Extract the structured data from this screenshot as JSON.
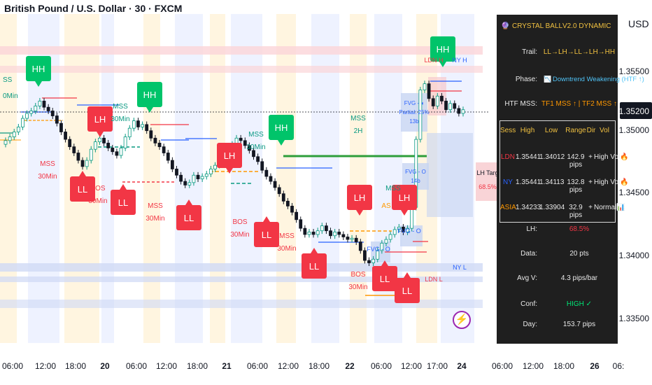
{
  "header": {
    "title": "British Pound / U.S. Dollar · 30 · FXCM",
    "currency": "USD"
  },
  "chart_data": {
    "type": "candlestick",
    "symbol": "British Pound / U.S. Dollar · 30 · FXCM",
    "y_ticks": [
      "1.35500",
      "1.35000",
      "1.34500",
      "1.34000",
      "1.33500"
    ],
    "current_price": "1.35200",
    "x_ticks": [
      "06:00",
      "12:00",
      "18:00",
      "20",
      "06:00",
      "12:00",
      "18:00",
      "21",
      "06:00",
      "12:00",
      "18:00",
      "22",
      "06:00",
      "12:00",
      "17:00",
      "24",
      "06:00",
      "12:00",
      "18:00",
      "26",
      "06:"
    ],
    "closes": [
      1.3494,
      1.3497,
      1.3501,
      1.3505,
      1.3512,
      1.3516,
      1.3518,
      1.3522,
      1.3526,
      1.3521,
      1.3518,
      1.3514,
      1.3508,
      1.3501,
      1.3495,
      1.3489,
      1.3484,
      1.3478,
      1.3473,
      1.3478,
      1.3487,
      1.3493,
      1.3496,
      1.3492,
      1.3488,
      1.3485,
      1.3482,
      1.3488,
      1.3497,
      1.3504,
      1.351,
      1.3505,
      1.3507,
      1.3502,
      1.3496,
      1.3492,
      1.3489,
      1.3484,
      1.3478,
      1.3471,
      1.3466,
      1.3461,
      1.3458,
      1.346,
      1.3466,
      1.3463,
      1.3465,
      1.3467,
      1.3471,
      1.3474,
      1.3478,
      1.3481,
      1.3484,
      1.3491,
      1.3496,
      1.3494,
      1.349,
      1.3486,
      1.3481,
      1.3477,
      1.347,
      1.3465,
      1.3461,
      1.3456,
      1.3451,
      1.3445,
      1.3441,
      1.3436,
      1.343,
      1.3423,
      1.3418,
      1.342,
      1.3418,
      1.3421,
      1.3425,
      1.3421,
      1.3417,
      1.342,
      1.3418,
      1.3416,
      1.3414,
      1.3415,
      1.3412,
      1.3405,
      1.3397,
      1.3395,
      1.3398,
      1.3405,
      1.3411,
      1.3414,
      1.3418,
      1.3422,
      1.3424,
      1.342,
      1.3423,
      1.344,
      1.3495,
      1.3535,
      1.354,
      1.3528,
      1.3522,
      1.353,
      1.3526,
      1.3519,
      1.3524,
      1.352,
      1.3516,
      1.3519
    ],
    "annotations": [
      {
        "text": "HH",
        "color": "#089981"
      },
      {
        "text": "LH",
        "color": "#f23645"
      },
      {
        "text": "HH",
        "color": "#089981"
      },
      {
        "text": "LH",
        "color": "#f23645"
      },
      {
        "text": "HH",
        "color": "#089981"
      },
      {
        "text": "LH",
        "color": "#f23645"
      },
      {
        "text": "LH",
        "color": "#f23645"
      },
      {
        "text": "HH",
        "color": "#089981"
      },
      {
        "text": "LL",
        "color": "#f23645"
      },
      {
        "text": "LL",
        "color": "#f23645"
      },
      {
        "text": "LL",
        "color": "#f23645"
      },
      {
        "text": "LL",
        "color": "#f23645"
      },
      {
        "text": "LL",
        "color": "#f23645"
      },
      {
        "text": "LL",
        "color": "#f23645"
      },
      {
        "text": "LL",
        "color": "#f23645"
      }
    ],
    "structure_labels": [
      "SS",
      "0Min",
      "MSS 30Min",
      "MSS 30Min",
      "BOS 30Min",
      "MSS 30Min",
      "MSS 30Min",
      "BOS 30Min",
      "MSS 30Min",
      "MSS 2H",
      "BOS 30Min",
      "MSS",
      "AS",
      "0Min"
    ],
    "zone_labels": [
      "LDN H",
      "NY H",
      "LDN L",
      "NY L",
      "FVG - ◖ Partial: 25% 13b",
      "FVG - O 14b",
      "FVG - O",
      "FVG - O",
      "LH Targ",
      "68.5%"
    ],
    "grid": false,
    "legend": "none"
  },
  "panel": {
    "title": "CRYSTAL BALL",
    "version": "V2.0 DYNAMIC",
    "trail_label": "Trail:",
    "trail_value": "LL→LH→LL→LH→HH",
    "phase_label": "Phase:",
    "phase_value": "Downtrend Weakening (HTF ↑)",
    "htf_label": "HTF MSS:",
    "htf_value": "TF1 MSS ↑ | TF2 MSS ↑",
    "table_headers": [
      "Sess",
      "High",
      "Low",
      "Range",
      "Dir",
      "Vol"
    ],
    "sessions": [
      {
        "sess": "LDN",
        "high": "1.35441",
        "low": "1.34012",
        "range": "142.9 pips",
        "dir": "+",
        "vol": "High Vol🔥",
        "color": "#f23645"
      },
      {
        "sess": "NY",
        "high": "1.35441",
        "low": "1.34113",
        "range": "132.8 pips",
        "dir": "+",
        "vol": "High Vol🔥",
        "color": "#2962ff"
      },
      {
        "sess": "ASIA",
        "high": "1.34233",
        "low": "1.33904",
        "range": "32.9 pips",
        "dir": "+",
        "vol": "Normal📊",
        "color": "#ff9800"
      }
    ],
    "lh_label": "LH:",
    "lh_value": "68.5%",
    "data_label": "Data:",
    "data_value": "20 pts",
    "avgv_label": "Avg V:",
    "avgv_value": "4.3 pips/bar",
    "conf_label": "Conf:",
    "conf_value": "HIGH ✓",
    "day_label": "Day:",
    "day_value": "153.7 pips"
  },
  "colors": {
    "up": "#089981",
    "down": "#131722",
    "red": "#f23645",
    "green": "#00c853",
    "blue": "#2962ff",
    "orange": "#ff9800",
    "panel_bg": "#1f1f1f"
  }
}
